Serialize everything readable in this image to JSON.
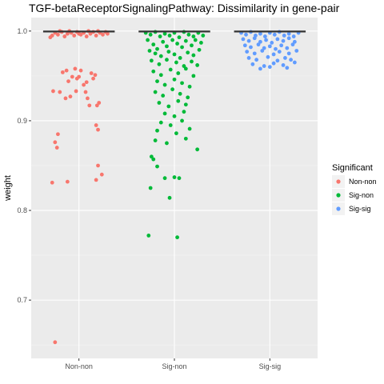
{
  "chart_data": {
    "type": "scatter",
    "subtype": "jitter-boxplot",
    "title": "TGF-betaReceptorSignalingPathway: Dissimilarity in gene-pair",
    "xlabel": "",
    "ylabel": "weight",
    "categories": [
      "Non-non",
      "Sig-non",
      "Sig-sig"
    ],
    "ylim": [
      0.635,
      1.015
    ],
    "yticks": [
      0.7,
      0.8,
      0.9,
      1.0
    ],
    "ytick_labels": [
      "0.7",
      "0.8",
      "0.9",
      "1.0"
    ],
    "grid": true,
    "background": "#ebebeb",
    "legend": {
      "title": "Significant",
      "position": "right",
      "entries": [
        {
          "label": "Non-non",
          "color": "#f8766d"
        },
        {
          "label": "Sig-non",
          "color": "#00ba38"
        },
        {
          "label": "Sig-sig",
          "color": "#619cff"
        }
      ]
    },
    "boxes": [
      {
        "category": "Non-non",
        "q1": 0.998,
        "median": 0.9995,
        "q3": 1.0
      },
      {
        "category": "Sig-non",
        "q1": 0.997,
        "median": 0.9995,
        "q3": 1.0
      },
      {
        "category": "Sig-sig",
        "q1": 0.999,
        "median": 0.9995,
        "q3": 1.0
      }
    ],
    "series": [
      {
        "name": "Non-non",
        "color": "#f8766d",
        "points": [
          [
            -0.28,
            0.995
          ],
          [
            -0.25,
            0.998
          ],
          [
            -0.22,
            0.996
          ],
          [
            -0.18,
            0.999
          ],
          [
            -0.15,
            0.994
          ],
          [
            -0.12,
            0.997
          ],
          [
            -0.08,
            0.998
          ],
          [
            -0.05,
            0.995
          ],
          [
            -0.02,
            0.999
          ],
          [
            0.02,
            0.996
          ],
          [
            0.05,
            0.998
          ],
          [
            0.08,
            0.994
          ],
          [
            0.12,
            0.997
          ],
          [
            0.15,
            0.999
          ],
          [
            0.18,
            0.995
          ],
          [
            0.22,
            0.998
          ],
          [
            0.25,
            0.996
          ],
          [
            0.28,
            0.999
          ],
          [
            -0.3,
            0.993
          ],
          [
            0.3,
            0.997
          ],
          [
            -0.1,
            1.0
          ],
          [
            0.1,
            1.0
          ],
          [
            0.0,
            0.997
          ],
          [
            -0.2,
            1.0
          ],
          [
            0.2,
            1.0
          ],
          [
            -0.27,
            0.933
          ],
          [
            -0.2,
            0.932
          ],
          [
            -0.17,
            0.954
          ],
          [
            -0.13,
            0.956
          ],
          [
            -0.11,
            0.944
          ],
          [
            -0.09,
            0.927
          ],
          [
            -0.14,
            0.925
          ],
          [
            -0.07,
            0.949
          ],
          [
            -0.04,
            0.958
          ],
          [
            -0.03,
            0.933
          ],
          [
            0.02,
            0.956
          ],
          [
            0.05,
            0.94
          ],
          [
            0.07,
            0.932
          ],
          [
            0.09,
            0.925
          ],
          [
            0.11,
            0.917
          ],
          [
            0.13,
            0.953
          ],
          [
            0.15,
            0.947
          ],
          [
            0.17,
            0.951
          ],
          [
            0.19,
            0.917
          ],
          [
            0.21,
            0.92
          ],
          [
            0.18,
            0.895
          ],
          [
            0.2,
            0.89
          ],
          [
            -0.02,
            0.947
          ],
          [
            0.0,
            0.949
          ],
          [
            0.08,
            0.943
          ],
          [
            -0.22,
            0.885
          ],
          [
            -0.25,
            0.876
          ],
          [
            -0.23,
            0.87
          ],
          [
            0.2,
            0.85
          ],
          [
            0.24,
            0.84
          ],
          [
            -0.28,
            0.831
          ],
          [
            -0.12,
            0.832
          ],
          [
            0.18,
            0.834
          ],
          [
            -0.25,
            0.653
          ]
        ]
      },
      {
        "name": "Sig-non",
        "color": "#00ba38",
        "points": [
          [
            -0.3,
            0.998
          ],
          [
            -0.25,
            0.996
          ],
          [
            -0.2,
            0.999
          ],
          [
            -0.15,
            0.994
          ],
          [
            -0.1,
            0.997
          ],
          [
            -0.05,
            0.995
          ],
          [
            0.0,
            0.998
          ],
          [
            0.05,
            0.993
          ],
          [
            0.1,
            0.999
          ],
          [
            0.15,
            0.996
          ],
          [
            0.2,
            0.994
          ],
          [
            0.25,
            0.998
          ],
          [
            0.3,
            0.995
          ],
          [
            -0.28,
            0.99
          ],
          [
            -0.22,
            0.985
          ],
          [
            -0.18,
            0.98
          ],
          [
            -0.12,
            0.988
          ],
          [
            -0.08,
            0.983
          ],
          [
            -0.02,
            0.99
          ],
          [
            0.03,
            0.986
          ],
          [
            0.08,
            0.982
          ],
          [
            0.12,
            0.989
          ],
          [
            0.18,
            0.984
          ],
          [
            0.22,
            0.99
          ],
          [
            0.28,
            0.987
          ],
          [
            -0.26,
            0.978
          ],
          [
            -0.2,
            0.975
          ],
          [
            -0.14,
            0.972
          ],
          [
            -0.06,
            0.977
          ],
          [
            0.0,
            0.974
          ],
          [
            0.06,
            0.97
          ],
          [
            0.14,
            0.976
          ],
          [
            0.2,
            0.973
          ],
          [
            0.26,
            0.979
          ],
          [
            -0.24,
            0.967
          ],
          [
            -0.16,
            0.963
          ],
          [
            -0.08,
            0.968
          ],
          [
            0.02,
            0.965
          ],
          [
            0.1,
            0.961
          ],
          [
            0.18,
            0.966
          ],
          [
            0.24,
            0.962
          ],
          [
            -0.22,
            0.955
          ],
          [
            -0.14,
            0.951
          ],
          [
            -0.04,
            0.957
          ],
          [
            0.04,
            0.953
          ],
          [
            0.12,
            0.958
          ],
          [
            0.2,
            0.95
          ],
          [
            -0.18,
            0.944
          ],
          [
            -0.1,
            0.94
          ],
          [
            0.0,
            0.946
          ],
          [
            0.08,
            0.942
          ],
          [
            0.16,
            0.938
          ],
          [
            -0.2,
            0.932
          ],
          [
            -0.12,
            0.928
          ],
          [
            -0.02,
            0.935
          ],
          [
            0.06,
            0.93
          ],
          [
            0.14,
            0.926
          ],
          [
            -0.16,
            0.92
          ],
          [
            -0.06,
            0.916
          ],
          [
            0.04,
            0.922
          ],
          [
            0.12,
            0.918
          ],
          [
            -0.1,
            0.908
          ],
          [
            0.0,
            0.905
          ],
          [
            0.1,
            0.91
          ],
          [
            -0.14,
            0.898
          ],
          [
            -0.04,
            0.895
          ],
          [
            0.08,
            0.9
          ],
          [
            -0.18,
            0.889
          ],
          [
            0.02,
            0.886
          ],
          [
            0.16,
            0.891
          ],
          [
            -0.2,
            0.878
          ],
          [
            -0.08,
            0.875
          ],
          [
            0.12,
            0.88
          ],
          [
            0.24,
            0.868
          ],
          [
            -0.24,
            0.86
          ],
          [
            -0.22,
            0.857
          ],
          [
            -0.18,
            0.849
          ],
          [
            -0.25,
            0.825
          ],
          [
            -0.1,
            0.836
          ],
          [
            -0.05,
            0.814
          ],
          [
            0.0,
            0.837
          ],
          [
            0.05,
            0.836
          ],
          [
            -0.27,
            0.772
          ],
          [
            0.03,
            0.77
          ]
        ]
      },
      {
        "name": "Sig-sig",
        "color": "#619cff",
        "points": [
          [
            -0.3,
            0.998
          ],
          [
            -0.25,
            0.996
          ],
          [
            -0.2,
            0.999
          ],
          [
            -0.15,
            0.995
          ],
          [
            -0.1,
            0.997
          ],
          [
            -0.05,
            0.994
          ],
          [
            0.0,
            0.998
          ],
          [
            0.05,
            0.996
          ],
          [
            0.1,
            0.999
          ],
          [
            0.15,
            0.995
          ],
          [
            0.2,
            0.997
          ],
          [
            0.25,
            0.994
          ],
          [
            0.3,
            0.998
          ],
          [
            -0.28,
            0.991
          ],
          [
            -0.22,
            0.989
          ],
          [
            -0.16,
            0.992
          ],
          [
            -0.1,
            0.988
          ],
          [
            -0.04,
            0.99
          ],
          [
            0.02,
            0.987
          ],
          [
            0.08,
            0.991
          ],
          [
            0.14,
            0.989
          ],
          [
            0.2,
            0.992
          ],
          [
            0.26,
            0.988
          ],
          [
            -0.26,
            0.984
          ],
          [
            -0.2,
            0.982
          ],
          [
            -0.12,
            0.985
          ],
          [
            -0.06,
            0.981
          ],
          [
            0.0,
            0.983
          ],
          [
            0.06,
            0.98
          ],
          [
            0.12,
            0.984
          ],
          [
            0.18,
            0.981
          ],
          [
            0.24,
            0.985
          ],
          [
            -0.24,
            0.977
          ],
          [
            -0.16,
            0.975
          ],
          [
            -0.08,
            0.978
          ],
          [
            0.04,
            0.974
          ],
          [
            0.1,
            0.977
          ],
          [
            0.2,
            0.975
          ],
          [
            0.28,
            0.978
          ],
          [
            -0.22,
            0.97
          ],
          [
            -0.14,
            0.968
          ],
          [
            -0.02,
            0.971
          ],
          [
            0.08,
            0.967
          ],
          [
            0.16,
            0.97
          ],
          [
            0.22,
            0.968
          ],
          [
            -0.18,
            0.963
          ],
          [
            -0.06,
            0.961
          ],
          [
            0.04,
            0.964
          ],
          [
            0.14,
            0.962
          ],
          [
            0.26,
            0.965
          ],
          [
            -0.1,
            0.958
          ],
          [
            0.0,
            0.96
          ],
          [
            0.18,
            0.959
          ]
        ]
      }
    ]
  }
}
